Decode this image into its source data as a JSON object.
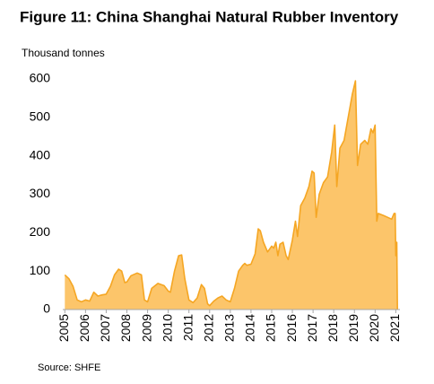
{
  "chart_data": {
    "type": "area",
    "title": "Figure 11: China Shanghai Natural Rubber Inventory",
    "y_label": "Thousand tonnes",
    "source": "Source: SHFE",
    "color": "#fcc56a",
    "line_color": "#f5a623",
    "x": [
      2005.0,
      2005.2,
      2005.4,
      2005.6,
      2005.8,
      2006.0,
      2006.2,
      2006.4,
      2006.6,
      2006.8,
      2007.0,
      2007.2,
      2007.4,
      2007.6,
      2007.75,
      2007.9,
      2008.0,
      2008.2,
      2008.5,
      2008.7,
      2008.85,
      2009.0,
      2009.2,
      2009.5,
      2009.8,
      2010.0,
      2010.1,
      2010.3,
      2010.5,
      2010.65,
      2010.8,
      2011.0,
      2011.2,
      2011.4,
      2011.6,
      2011.75,
      2011.9,
      2012.0,
      2012.2,
      2012.4,
      2012.6,
      2012.8,
      2013.0,
      2013.2,
      2013.4,
      2013.6,
      2013.7,
      2013.8,
      2014.0,
      2014.2,
      2014.35,
      2014.45,
      2014.6,
      2014.8,
      2015.0,
      2015.1,
      2015.2,
      2015.3,
      2015.4,
      2015.55,
      2015.7,
      2015.8,
      2016.0,
      2016.15,
      2016.25,
      2016.4,
      2016.6,
      2016.8,
      2016.95,
      2017.05,
      2017.15,
      2017.3,
      2017.5,
      2017.7,
      2017.9,
      2018.05,
      2018.15,
      2018.3,
      2018.5,
      2018.7,
      2018.9,
      2019.05,
      2019.15,
      2019.3,
      2019.5,
      2019.65,
      2019.8,
      2019.9,
      2020.0,
      2020.08,
      2020.15,
      2020.4,
      2020.6,
      2020.8,
      2020.92,
      2020.97,
      2021.0,
      2021.05,
      2021.08
    ],
    "values": [
      90,
      80,
      60,
      25,
      20,
      25,
      22,
      45,
      35,
      38,
      40,
      60,
      90,
      105,
      100,
      70,
      72,
      88,
      95,
      90,
      25,
      20,
      55,
      68,
      62,
      48,
      45,
      100,
      140,
      142,
      80,
      25,
      18,
      30,
      65,
      55,
      15,
      10,
      22,
      30,
      35,
      25,
      20,
      55,
      100,
      115,
      120,
      115,
      118,
      145,
      210,
      205,
      175,
      150,
      165,
      160,
      175,
      140,
      170,
      175,
      140,
      130,
      180,
      230,
      190,
      270,
      290,
      320,
      360,
      355,
      240,
      300,
      330,
      345,
      410,
      480,
      320,
      420,
      440,
      500,
      560,
      595,
      375,
      430,
      440,
      430,
      470,
      460,
      480,
      230,
      250,
      245,
      240,
      235,
      250,
      250,
      140,
      175,
      0
    ],
    "xlim": [
      2004.9,
      2021.2
    ],
    "xticks": [
      2005,
      2006,
      2007,
      2008,
      2009,
      2010,
      2011,
      2012,
      2013,
      2014,
      2015,
      2016,
      2017,
      2018,
      2019,
      2020,
      2021
    ],
    "ylim": [
      0,
      600
    ],
    "yticks": [
      0,
      100,
      200,
      300,
      400,
      500,
      600
    ]
  }
}
